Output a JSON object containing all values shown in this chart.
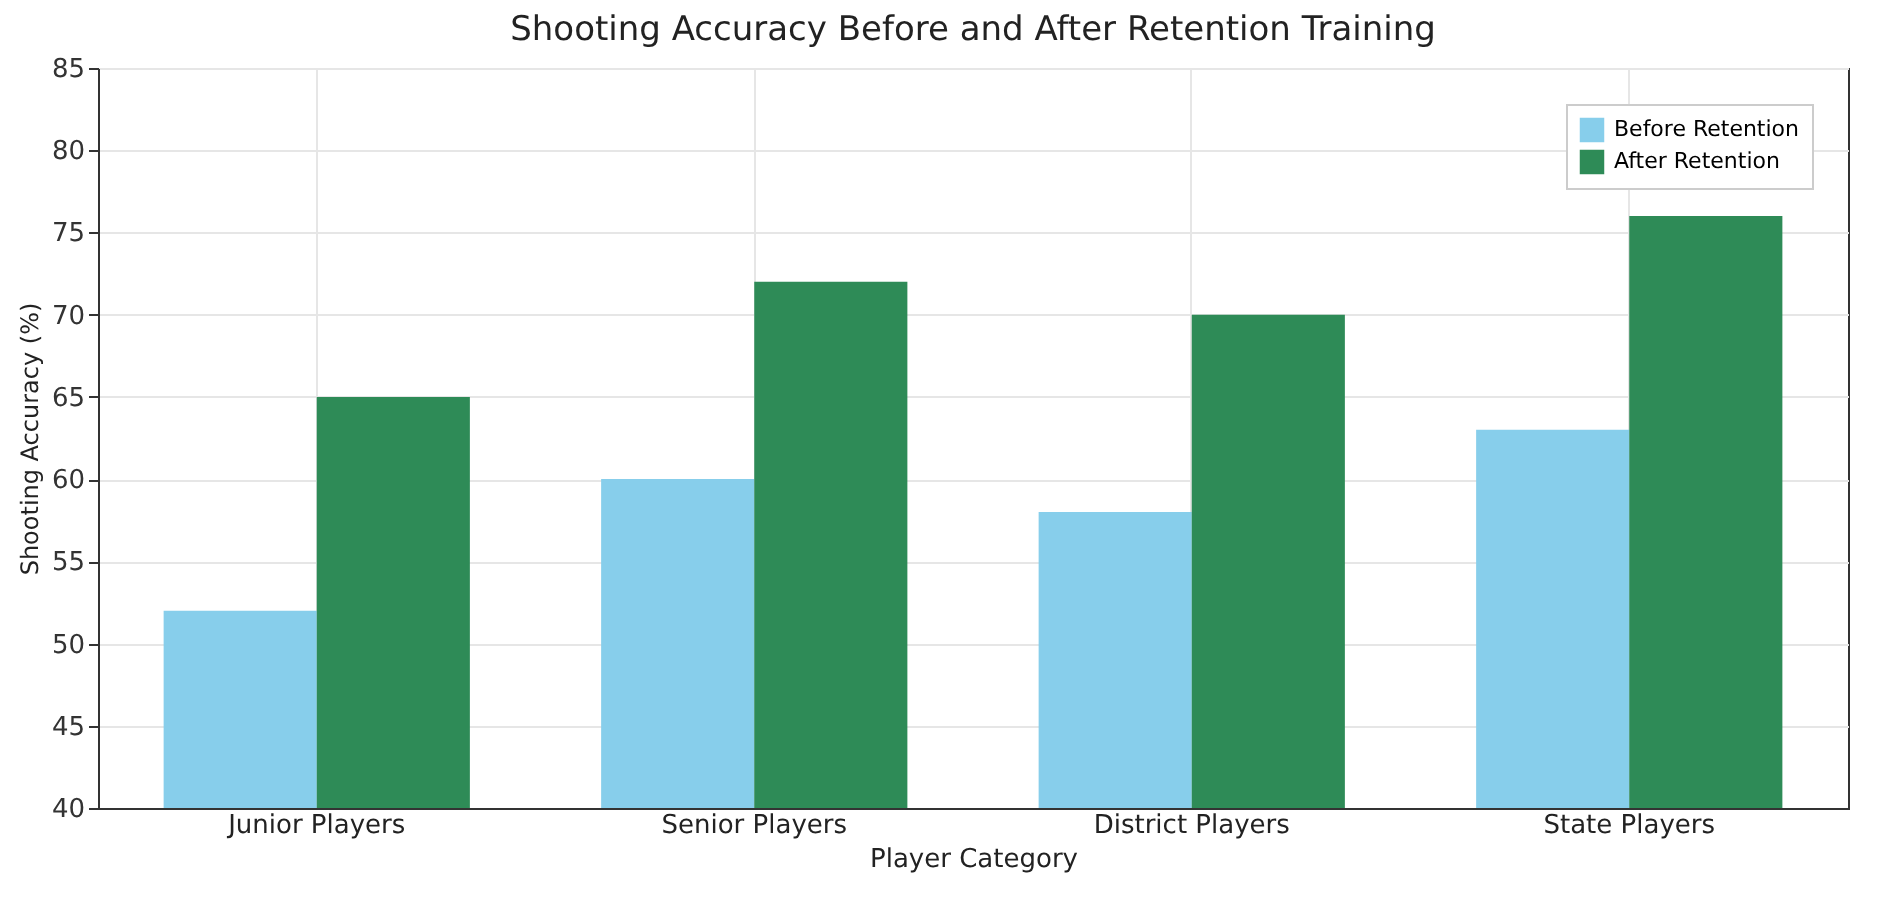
{
  "chart_data": {
    "type": "bar",
    "title": "Shooting Accuracy Before and After Retention Training",
    "xlabel": "Player Category",
    "ylabel": "Shooting Accuracy (%)",
    "categories": [
      "Junior Players",
      "Senior Players",
      "District Players",
      "State Players"
    ],
    "series": [
      {
        "name": "Before Retention",
        "color": "#87ceeb",
        "values": [
          52,
          60,
          58,
          63
        ]
      },
      {
        "name": "After Retention",
        "color": "#2e8b57",
        "values": [
          65,
          72,
          70,
          76
        ]
      }
    ],
    "ylim": [
      40,
      85
    ],
    "yticks": [
      40,
      45,
      50,
      55,
      60,
      65,
      70,
      75,
      80,
      85
    ],
    "grid": true,
    "legend": "top right"
  }
}
